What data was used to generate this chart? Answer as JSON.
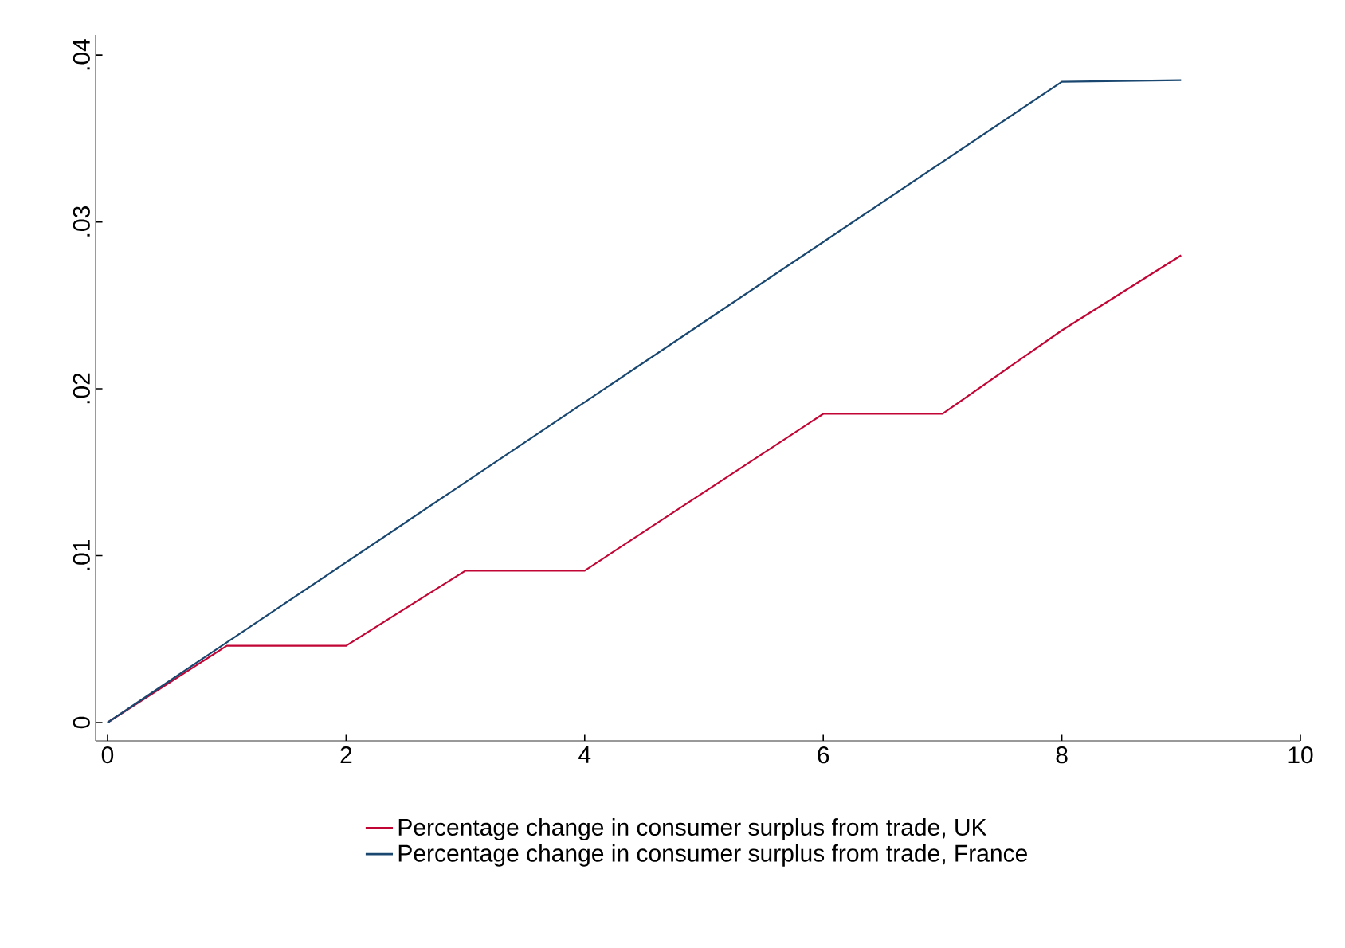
{
  "chart_data": {
    "type": "line",
    "x": [
      0,
      1,
      2,
      3,
      4,
      5,
      6,
      7,
      8,
      9
    ],
    "series": [
      {
        "name": "Percentage change in consumer surplus from trade, UK",
        "color": "#c10534",
        "values": [
          0,
          0.0046,
          0.0046,
          0.0091,
          0.0091,
          0.0138,
          0.0185,
          0.0185,
          0.0235,
          0.028
        ]
      },
      {
        "name": "Percentage change in consumer surplus from trade, France",
        "color": "#1a476f",
        "values": [
          0,
          0.0048,
          0.0096,
          0.0144,
          0.0192,
          0.024,
          0.0288,
          0.0336,
          0.0384,
          0.0385
        ]
      }
    ],
    "xlim": [
      -0.1,
      10
    ],
    "xticks": [
      0,
      2,
      4,
      6,
      8,
      10
    ],
    "ylim": [
      -0.0011,
      0.0412
    ],
    "yticks": [
      {
        "value": 0,
        "label": "0"
      },
      {
        "value": 0.01,
        "label": ".01"
      },
      {
        "value": 0.02,
        "label": ".02"
      },
      {
        "value": 0.03,
        "label": ".03"
      },
      {
        "value": 0.04,
        "label": ".04"
      }
    ],
    "grid": false,
    "legend": "bottom",
    "marker": "none",
    "line_style": "solid"
  }
}
